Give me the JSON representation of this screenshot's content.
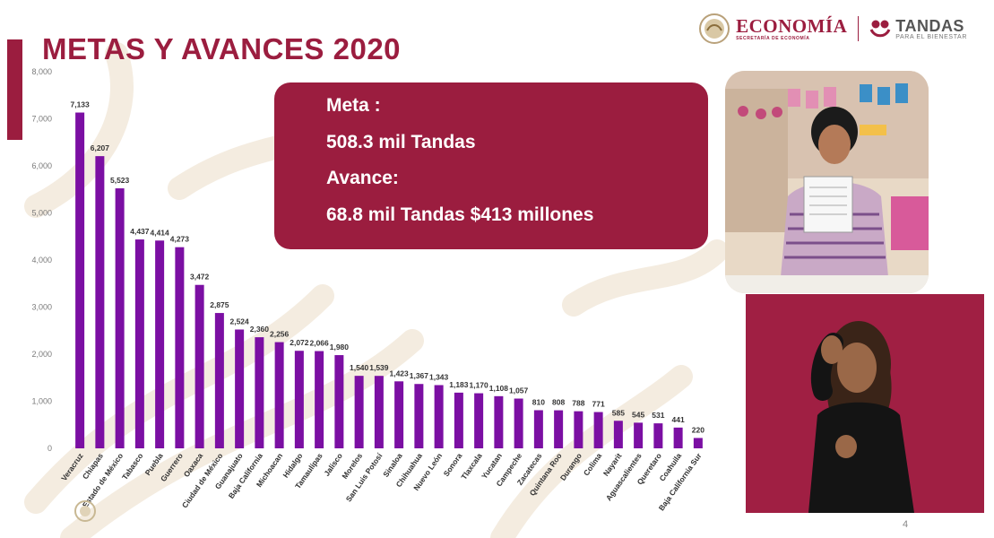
{
  "header": {
    "title": "METAS Y AVANCES 2020",
    "logo_economia": "ECONOMÍA",
    "logo_economia_sub": "SECRETARÍA DE ECONOMÍA",
    "logo_tandas": "TANDAS",
    "logo_tandas_sub": "PARA EL BIENESTAR"
  },
  "info_box": {
    "meta_label": "Meta :",
    "meta_value": "508.3 mil Tandas",
    "avance_label": "Avance:",
    "avance_value": "68.8 mil Tandas $413 millones"
  },
  "page_number": "4",
  "colors": {
    "accent": "#9b1d3f",
    "bar": "#7b0fa3",
    "signer_bg": "#a01f43"
  },
  "chart_data": {
    "type": "bar",
    "categories": [
      "Veracruz",
      "Chiapas",
      "Estado de México",
      "Tabasco",
      "Puebla",
      "Guerrero",
      "Oaxaca",
      "Ciudad de México",
      "Guanajuato",
      "Baja California",
      "Michoacan",
      "Hidalgo",
      "Tamaulipas",
      "Jalisco",
      "Morelos",
      "San Luis Potosí",
      "Sinaloa",
      "Chihuahua",
      "Nuevo León",
      "Sonora",
      "Tlaxcala",
      "Yucatan",
      "Campeche",
      "Zacatecas",
      "Quintana Roo",
      "Durango",
      "Colima",
      "Nayarit",
      "Aguascalientes",
      "Queretaro",
      "Coahuila",
      "Baja California Sur"
    ],
    "values": [
      7133,
      6207,
      5523,
      4437,
      4414,
      4273,
      3472,
      2875,
      2524,
      2360,
      2256,
      2072,
      2066,
      1980,
      1540,
      1539,
      1423,
      1367,
      1343,
      1183,
      1170,
      1108,
      1057,
      810,
      808,
      788,
      771,
      585,
      545,
      531,
      441,
      220
    ],
    "value_labels": [
      "7,133",
      "6,207",
      "5,523",
      "4,437",
      "4,414",
      "4,273",
      "3,472",
      "2,875",
      "2,524",
      "2,360",
      "2,256",
      "2,072",
      "2,066",
      "1,980",
      "1,540",
      "1,539",
      "1,423",
      "1,367",
      "1,343",
      "1,183",
      "1,170",
      "1,108",
      "1,057",
      "810",
      "808",
      "788",
      "771",
      "585",
      "545",
      "531",
      "441",
      "220"
    ],
    "yticks": [
      0,
      1000,
      2000,
      3000,
      4000,
      5000,
      6000,
      7000,
      8000
    ],
    "ytick_labels": [
      "0",
      "1,000",
      "2,000",
      "3,000",
      "4,000",
      "5,000",
      "6,000",
      "7,000",
      "8,000"
    ],
    "ylim": [
      0,
      8000
    ],
    "grid": false,
    "xlabel": "",
    "ylabel": "",
    "title": ""
  }
}
